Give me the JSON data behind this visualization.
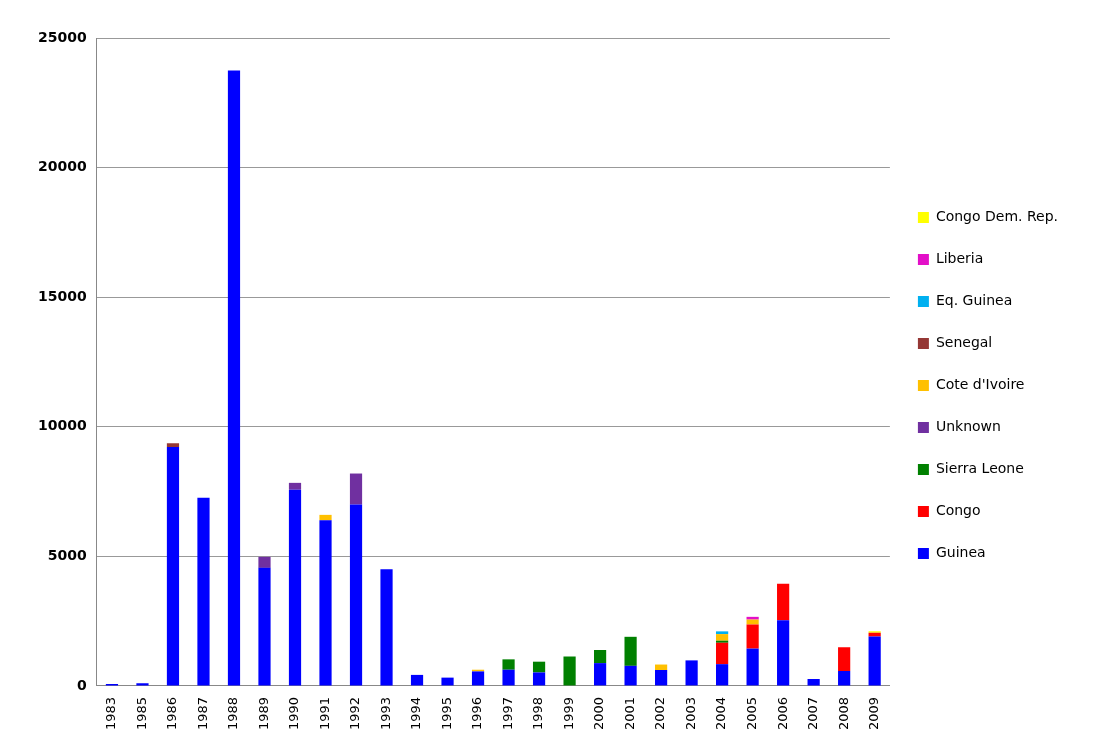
{
  "chart_data": {
    "type": "bar",
    "stacked": true,
    "categories": [
      "1983",
      "1985",
      "1986",
      "1987",
      "1988",
      "1989",
      "1990",
      "1991",
      "1992",
      "1993",
      "1994",
      "1995",
      "1996",
      "1997",
      "1998",
      "1999",
      "2000",
      "2001",
      "2002",
      "2003",
      "2004",
      "2005",
      "2006",
      "2007",
      "2008",
      "2009"
    ],
    "series": [
      {
        "name": "Guinea",
        "color": "#0000ff",
        "values": [
          70,
          100,
          9220,
          7265,
          23750,
          4555,
          7570,
          6390,
          7000,
          4500,
          425,
          320,
          560,
          625,
          520,
          null,
          880,
          775,
          615,
          985,
          840,
          1440,
          2530,
          265,
          575,
          1905
        ]
      },
      {
        "name": "Congo",
        "color": "#ff0000",
        "values": [
          null,
          null,
          null,
          null,
          null,
          null,
          null,
          null,
          null,
          null,
          null,
          null,
          null,
          null,
          null,
          null,
          null,
          null,
          null,
          null,
          825,
          930,
          1415,
          null,
          920,
          150
        ]
      },
      {
        "name": "Sierra Leone",
        "color": "#008000",
        "values": [
          null,
          null,
          null,
          null,
          null,
          null,
          null,
          null,
          null,
          null,
          null,
          null,
          null,
          400,
          415,
          1135,
          505,
          1120,
          null,
          null,
          80,
          null,
          null,
          null,
          null,
          null
        ]
      },
      {
        "name": "Unknown",
        "color": "#7030a0",
        "values": [
          null,
          null,
          null,
          null,
          null,
          425,
          265,
          null,
          1195,
          null,
          null,
          null,
          null,
          null,
          null,
          null,
          null,
          null,
          null,
          null,
          null,
          null,
          null,
          null,
          null,
          null
        ]
      },
      {
        "name": "Cote d'Ivoire",
        "color": "#ffc000",
        "values": [
          null,
          null,
          null,
          null,
          null,
          null,
          null,
          210,
          null,
          null,
          null,
          null,
          65,
          null,
          null,
          null,
          null,
          null,
          210,
          null,
          255,
          190,
          null,
          null,
          null,
          null
        ]
      },
      {
        "name": "Senegal",
        "color": "#953735",
        "values": [
          null,
          null,
          140,
          null,
          null,
          null,
          null,
          null,
          null,
          null,
          null,
          null,
          null,
          null,
          null,
          null,
          null,
          null,
          null,
          null,
          null,
          null,
          null,
          null,
          null,
          null
        ]
      },
      {
        "name": "Eq. Guinea",
        "color": "#00b0f0",
        "values": [
          null,
          null,
          null,
          null,
          null,
          null,
          null,
          null,
          null,
          null,
          null,
          null,
          null,
          null,
          null,
          null,
          null,
          null,
          null,
          null,
          105,
          null,
          null,
          null,
          null,
          null
        ]
      },
      {
        "name": "Liberia",
        "color": "#e30fc8",
        "values": [
          null,
          null,
          null,
          null,
          null,
          null,
          null,
          null,
          null,
          null,
          null,
          null,
          null,
          null,
          null,
          null,
          null,
          null,
          null,
          null,
          null,
          105,
          null,
          null,
          null,
          null
        ]
      },
      {
        "name": "Congo Dem. Rep.",
        "color": "#ffff00",
        "values": [
          null,
          null,
          null,
          null,
          null,
          null,
          null,
          null,
          null,
          null,
          null,
          null,
          null,
          null,
          null,
          null,
          null,
          null,
          null,
          null,
          null,
          null,
          null,
          null,
          null,
          50
        ]
      }
    ],
    "ylim": [
      0,
      25000
    ],
    "yticks": [
      0,
      5000,
      10000,
      15000,
      20000,
      25000
    ],
    "grid": "y",
    "legend": "right"
  }
}
